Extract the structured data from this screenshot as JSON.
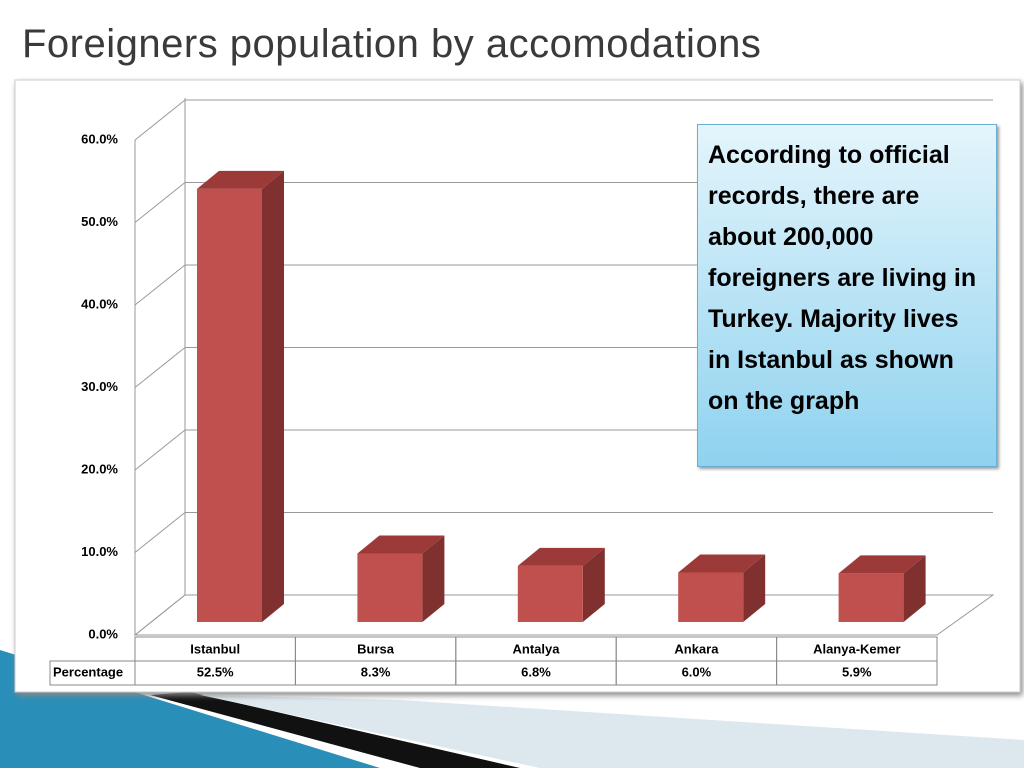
{
  "title": "Foreigners population by accomodations",
  "chart_data": {
    "type": "bar3d",
    "categories": [
      "Istanbul",
      "Bursa",
      "Antalya",
      "Ankara",
      "Alanya-Kemer"
    ],
    "series": [
      {
        "name": "Percentage",
        "color": "#c0504d",
        "values": [
          52.5,
          8.3,
          6.8,
          6.0,
          5.9
        ],
        "value_labels": [
          "52.5%",
          "8.3%",
          "6.8%",
          "6.0%",
          "5.9%"
        ]
      }
    ],
    "ylim": [
      0,
      60
    ],
    "yticks": [
      {
        "value": 0,
        "label": "0.0%"
      },
      {
        "value": 10,
        "label": "10.0%"
      },
      {
        "value": 20,
        "label": "20.0%"
      },
      {
        "value": 30,
        "label": "30.0%"
      },
      {
        "value": 40,
        "label": "40.0%"
      },
      {
        "value": 50,
        "label": "50.0%"
      },
      {
        "value": 60,
        "label": "60.0%"
      }
    ],
    "grid": true,
    "data_table": true,
    "annotation": "According to official records, there are about 200,000 foreigners are living in Turkey. Majority lives in Istanbul as shown on the graph"
  }
}
